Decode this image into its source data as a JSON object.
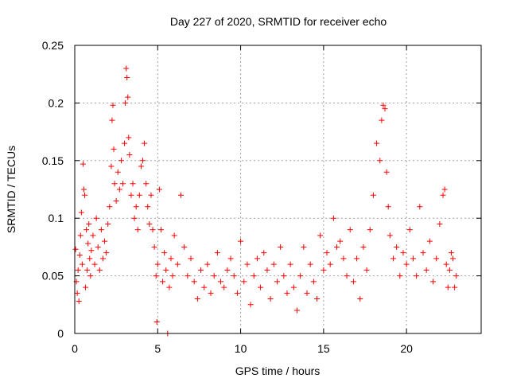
{
  "chart_data": {
    "type": "scatter",
    "title": "Day 227 of 2020, SRMTID for receiver echo",
    "xlabel": "GPS time / hours",
    "ylabel": "SRMTID / TECUs",
    "xlim": [
      0,
      24.5
    ],
    "ylim": [
      0,
      0.25
    ],
    "xticks": [
      0,
      5,
      10,
      15,
      20
    ],
    "xtick_labels": [
      "0",
      "5",
      "10",
      "15",
      "20"
    ],
    "yticks": [
      0,
      0.05,
      0.1,
      0.15,
      0.2,
      0.25
    ],
    "ytick_labels": [
      "0",
      "0.05",
      "0.1",
      "0.15",
      "0.2",
      "0.25"
    ],
    "grid": true,
    "marker": "+",
    "series": [
      {
        "name": "SRMTID",
        "color": "#ff0000",
        "points": [
          [
            0.05,
            0.073
          ],
          [
            0.1,
            0.045
          ],
          [
            0.15,
            0.035
          ],
          [
            0.2,
            0.055
          ],
          [
            0.25,
            0.028
          ],
          [
            0.3,
            0.068
          ],
          [
            0.35,
            0.085
          ],
          [
            0.4,
            0.105
          ],
          [
            0.45,
            0.06
          ],
          [
            0.5,
            0.147
          ],
          [
            0.55,
            0.125
          ],
          [
            0.6,
            0.12
          ],
          [
            0.65,
            0.04
          ],
          [
            0.7,
            0.09
          ],
          [
            0.75,
            0.055
          ],
          [
            0.8,
            0.078
          ],
          [
            0.85,
            0.095
          ],
          [
            0.9,
            0.065
          ],
          [
            0.95,
            0.05
          ],
          [
            1.0,
            0.072
          ],
          [
            1.1,
            0.085
          ],
          [
            1.2,
            0.06
          ],
          [
            1.3,
            0.1
          ],
          [
            1.4,
            0.075
          ],
          [
            1.5,
            0.055
          ],
          [
            1.6,
            0.09
          ],
          [
            1.7,
            0.065
          ],
          [
            1.8,
            0.08
          ],
          [
            1.9,
            0.07
          ],
          [
            2.0,
            0.095
          ],
          [
            2.1,
            0.11
          ],
          [
            2.2,
            0.145
          ],
          [
            2.25,
            0.185
          ],
          [
            2.3,
            0.198
          ],
          [
            2.35,
            0.16
          ],
          [
            2.4,
            0.13
          ],
          [
            2.5,
            0.115
          ],
          [
            2.6,
            0.14
          ],
          [
            2.7,
            0.125
          ],
          [
            2.8,
            0.15
          ],
          [
            2.9,
            0.13
          ],
          [
            3.0,
            0.165
          ],
          [
            3.05,
            0.2
          ],
          [
            3.1,
            0.23
          ],
          [
            3.15,
            0.222
          ],
          [
            3.2,
            0.205
          ],
          [
            3.25,
            0.17
          ],
          [
            3.3,
            0.155
          ],
          [
            3.4,
            0.12
          ],
          [
            3.5,
            0.13
          ],
          [
            3.6,
            0.1
          ],
          [
            3.7,
            0.11
          ],
          [
            3.8,
            0.09
          ],
          [
            3.9,
            0.12
          ],
          [
            4.0,
            0.145
          ],
          [
            4.1,
            0.15
          ],
          [
            4.2,
            0.165
          ],
          [
            4.3,
            0.13
          ],
          [
            4.4,
            0.11
          ],
          [
            4.5,
            0.095
          ],
          [
            4.6,
            0.12
          ],
          [
            4.7,
            0.09
          ],
          [
            4.8,
            0.075
          ],
          [
            4.9,
            0.05
          ],
          [
            4.95,
            0.01
          ],
          [
            5.0,
            0.06
          ],
          [
            5.1,
            0.125
          ],
          [
            5.2,
            0.09
          ],
          [
            5.3,
            0.045
          ],
          [
            5.4,
            0.07
          ],
          [
            5.5,
            0.055
          ],
          [
            5.6,
            0.0
          ],
          [
            5.7,
            0.04
          ],
          [
            5.8,
            0.065
          ],
          [
            5.9,
            0.05
          ],
          [
            6.0,
            0.085
          ],
          [
            6.2,
            0.06
          ],
          [
            6.4,
            0.12
          ],
          [
            6.6,
            0.075
          ],
          [
            6.8,
            0.05
          ],
          [
            7.0,
            0.065
          ],
          [
            7.2,
            0.045
          ],
          [
            7.4,
            0.03
          ],
          [
            7.6,
            0.055
          ],
          [
            7.8,
            0.04
          ],
          [
            8.0,
            0.06
          ],
          [
            8.2,
            0.035
          ],
          [
            8.4,
            0.05
          ],
          [
            8.6,
            0.07
          ],
          [
            8.8,
            0.045
          ],
          [
            9.0,
            0.04
          ],
          [
            9.2,
            0.055
          ],
          [
            9.4,
            0.065
          ],
          [
            9.6,
            0.05
          ],
          [
            9.8,
            0.035
          ],
          [
            10.0,
            0.08
          ],
          [
            10.2,
            0.045
          ],
          [
            10.4,
            0.06
          ],
          [
            10.6,
            0.025
          ],
          [
            10.8,
            0.05
          ],
          [
            11.0,
            0.065
          ],
          [
            11.2,
            0.04
          ],
          [
            11.4,
            0.07
          ],
          [
            11.6,
            0.055
          ],
          [
            11.8,
            0.03
          ],
          [
            12.0,
            0.06
          ],
          [
            12.2,
            0.045
          ],
          [
            12.4,
            0.075
          ],
          [
            12.6,
            0.05
          ],
          [
            12.8,
            0.035
          ],
          [
            13.0,
            0.06
          ],
          [
            13.2,
            0.04
          ],
          [
            13.4,
            0.02
          ],
          [
            13.6,
            0.05
          ],
          [
            13.8,
            0.075
          ],
          [
            14.0,
            0.035
          ],
          [
            14.2,
            0.06
          ],
          [
            14.4,
            0.045
          ],
          [
            14.6,
            0.03
          ],
          [
            14.8,
            0.085
          ],
          [
            15.0,
            0.055
          ],
          [
            15.2,
            0.07
          ],
          [
            15.4,
            0.06
          ],
          [
            15.6,
            0.1
          ],
          [
            15.8,
            0.075
          ],
          [
            16.0,
            0.08
          ],
          [
            16.2,
            0.065
          ],
          [
            16.4,
            0.05
          ],
          [
            16.6,
            0.09
          ],
          [
            16.8,
            0.045
          ],
          [
            17.0,
            0.065
          ],
          [
            17.2,
            0.03
          ],
          [
            17.4,
            0.075
          ],
          [
            17.6,
            0.055
          ],
          [
            17.8,
            0.09
          ],
          [
            18.0,
            0.12
          ],
          [
            18.2,
            0.165
          ],
          [
            18.4,
            0.15
          ],
          [
            18.5,
            0.185
          ],
          [
            18.6,
            0.198
          ],
          [
            18.7,
            0.195
          ],
          [
            18.8,
            0.14
          ],
          [
            18.9,
            0.11
          ],
          [
            19.0,
            0.085
          ],
          [
            19.2,
            0.065
          ],
          [
            19.4,
            0.075
          ],
          [
            19.6,
            0.05
          ],
          [
            19.8,
            0.07
          ],
          [
            20.0,
            0.06
          ],
          [
            20.2,
            0.09
          ],
          [
            20.4,
            0.065
          ],
          [
            20.6,
            0.05
          ],
          [
            20.8,
            0.11
          ],
          [
            21.0,
            0.07
          ],
          [
            21.2,
            0.055
          ],
          [
            21.4,
            0.08
          ],
          [
            21.6,
            0.045
          ],
          [
            21.8,
            0.065
          ],
          [
            22.0,
            0.095
          ],
          [
            22.2,
            0.12
          ],
          [
            22.3,
            0.125
          ],
          [
            22.4,
            0.06
          ],
          [
            22.5,
            0.04
          ],
          [
            22.6,
            0.055
          ],
          [
            22.7,
            0.07
          ],
          [
            22.8,
            0.065
          ],
          [
            22.9,
            0.04
          ],
          [
            23.0,
            0.05
          ]
        ]
      }
    ]
  }
}
